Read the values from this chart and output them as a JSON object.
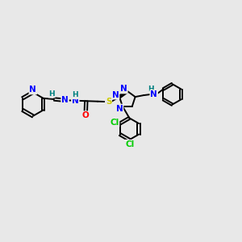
{
  "bg_color": "#e8e8e8",
  "bond_color": "#000000",
  "bond_width": 1.4,
  "atom_colors": {
    "N": "#0000ff",
    "O": "#ff0000",
    "S": "#cccc00",
    "Cl": "#00cc00",
    "H": "#008080",
    "C": "#000000"
  },
  "font_size": 7.5,
  "title": ""
}
